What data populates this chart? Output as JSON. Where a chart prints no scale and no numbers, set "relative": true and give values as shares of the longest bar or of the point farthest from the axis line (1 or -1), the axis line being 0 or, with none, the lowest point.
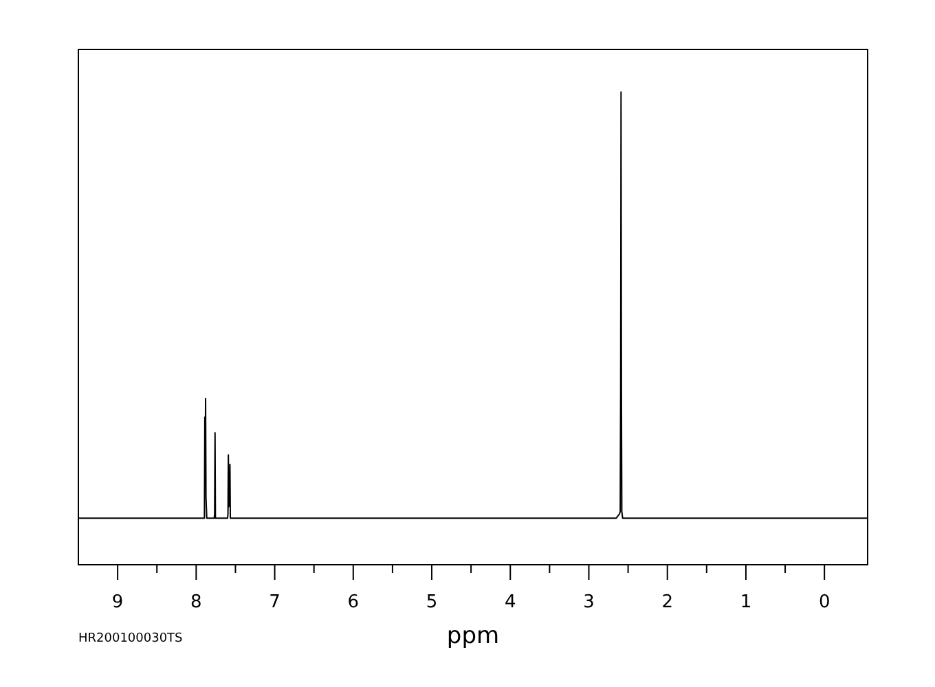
{
  "chart_data": {
    "type": "line",
    "xlabel": "ppm",
    "relative": true,
    "xlim": [
      9.5,
      -0.55
    ],
    "xticks": [
      9,
      {
        "value": 8.5,
        "label": null
      },
      8,
      {
        "value": 7.5,
        "label": null
      },
      7,
      {
        "value": 6.5,
        "label": null
      },
      6,
      {
        "value": 5.5,
        "label": null
      },
      5,
      {
        "value": 4.5,
        "label": null
      },
      4,
      {
        "value": 3.5,
        "label": null
      },
      3,
      {
        "value": 2.5,
        "label": null
      },
      2,
      {
        "value": 1.5,
        "label": null
      },
      1,
      {
        "value": 0.5,
        "label": null
      },
      0
    ],
    "x": [
      9.5,
      7.92,
      7.895,
      7.89,
      7.885,
      7.88,
      7.875,
      7.865,
      7.77,
      7.765,
      7.76,
      7.755,
      7.6,
      7.595,
      7.59,
      7.585,
      7.575,
      7.57,
      7.565,
      7.5,
      2.65,
      2.61,
      2.6,
      2.595,
      2.59,
      2.585,
      2.58,
      2.57,
      -0.55
    ],
    "series": [
      {
        "color": "#000000",
        "values": [
          0.096,
          0.096,
          0.096,
          0.31,
          0.19,
          0.35,
          0.14,
          0.096,
          0.096,
          0.105,
          0.277,
          0.096,
          0.096,
          0.105,
          0.23,
          0.12,
          0.13,
          0.21,
          0.096,
          0.096,
          0.096,
          0.105,
          0.11,
          0.37,
          1,
          0.37,
          0.11,
          0.096,
          0.096
        ]
      }
    ],
    "annotations": [
      "HR200100030TS"
    ],
    "grid": false,
    "marker": "none",
    "line_style": "solid"
  }
}
